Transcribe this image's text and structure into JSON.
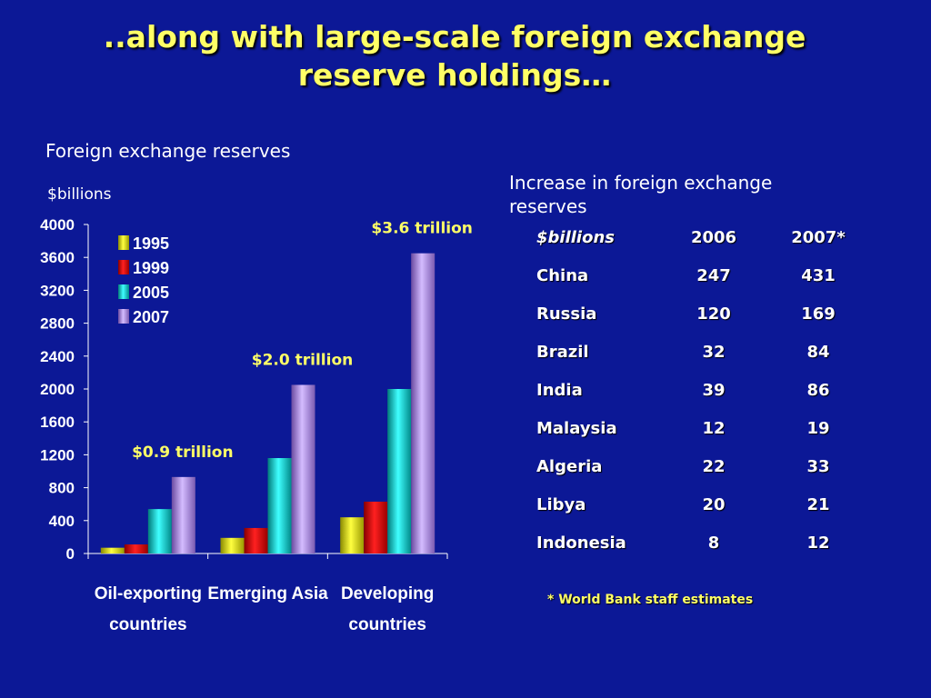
{
  "slide": {
    "title": "..along with large-scale foreign exchange reserve holdings…",
    "chart_heading": "Foreign exchange reserves",
    "unit_label": "$billions",
    "table_heading": "Increase in foreign exchange reserves",
    "footnote": "* World Bank staff estimates"
  },
  "chart_data": {
    "type": "bar",
    "categories": [
      "Oil-exporting countries",
      "Emerging Asia",
      "Developing countries"
    ],
    "category_lines": [
      [
        "Oil-exporting",
        "countries"
      ],
      [
        "Emerging Asia"
      ],
      [
        "Developing",
        "countries"
      ]
    ],
    "series": [
      {
        "name": "1995",
        "values": [
          70,
          190,
          440
        ],
        "color": "#e6e600"
      },
      {
        "name": "1999",
        "values": [
          110,
          310,
          630
        ],
        "color": "#e00000"
      },
      {
        "name": "2005",
        "values": [
          540,
          1160,
          2000
        ],
        "color": "#00d8d8"
      },
      {
        "name": "2007",
        "values": [
          930,
          2050,
          3650
        ],
        "color": "#b090e0"
      }
    ],
    "ylim": [
      0,
      4000
    ],
    "yticks": [
      0,
      400,
      800,
      1200,
      1600,
      2000,
      2400,
      2800,
      3200,
      3600,
      4000
    ],
    "ylabel": "$billions",
    "legend_position": "top-left",
    "grid": false,
    "annotations": [
      {
        "text": "$0.9 trillion",
        "category_index": 0
      },
      {
        "text": "$2.0 trillion",
        "category_index": 1
      },
      {
        "text": "$3.6 trillion",
        "category_index": 2
      }
    ]
  },
  "table": {
    "headers": [
      "$billions",
      "2006",
      "2007*"
    ],
    "rows": [
      [
        "China",
        "247",
        "431"
      ],
      [
        "Russia",
        "120",
        "169"
      ],
      [
        "Brazil",
        "32",
        "84"
      ],
      [
        "India",
        "39",
        "86"
      ],
      [
        "Malaysia",
        "12",
        "19"
      ],
      [
        "Algeria",
        "22",
        "33"
      ],
      [
        "Libya",
        "20",
        "21"
      ],
      [
        "Indonesia",
        "8",
        "12"
      ]
    ]
  }
}
